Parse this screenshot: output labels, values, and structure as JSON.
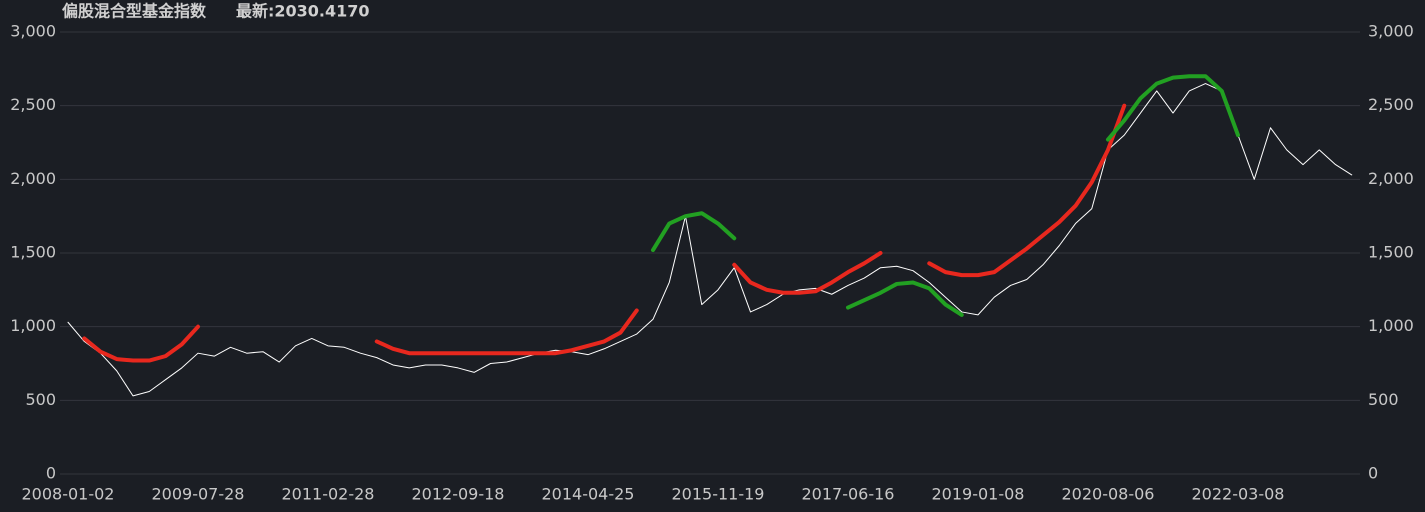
{
  "chart_data": {
    "type": "line",
    "title": "偏股混合型基金指数",
    "subtitle": "最新:2030.4170",
    "categories": [
      "2008-01-02",
      null,
      null,
      null,
      null,
      null,
      null,
      null,
      "2009-07-28",
      null,
      null,
      null,
      null,
      null,
      null,
      null,
      "2011-02-28",
      null,
      null,
      null,
      null,
      null,
      null,
      null,
      "2012-09-18",
      null,
      null,
      null,
      null,
      null,
      null,
      null,
      "2014-04-25",
      null,
      null,
      null,
      null,
      null,
      null,
      null,
      "2015-11-19",
      null,
      null,
      null,
      null,
      null,
      null,
      null,
      "2017-06-16",
      null,
      null,
      null,
      null,
      null,
      null,
      null,
      "2019-01-08",
      null,
      null,
      null,
      null,
      null,
      null,
      null,
      "2020-08-06",
      null,
      null,
      null,
      null,
      null,
      null,
      null,
      "2022-03-08",
      null,
      null,
      null,
      null,
      null,
      null,
      null
    ],
    "series": [
      {
        "color": "#ffffff",
        "width": 1,
        "values": [
          1030,
          900,
          820,
          700,
          530,
          560,
          640,
          720,
          820,
          800,
          860,
          820,
          830,
          760,
          870,
          920,
          870,
          860,
          820,
          790,
          740,
          720,
          740,
          740,
          720,
          690,
          750,
          760,
          790,
          820,
          840,
          830,
          810,
          850,
          900,
          950,
          1050,
          1300,
          1750,
          1150,
          1250,
          1400,
          1100,
          1150,
          1220,
          1250,
          1260,
          1220,
          1280,
          1330,
          1400,
          1410,
          1380,
          1300,
          1200,
          1100,
          1080,
          1200,
          1280,
          1320,
          1420,
          1550,
          1700,
          1800,
          2200,
          2300,
          2450,
          2600,
          2450,
          2600,
          2650,
          2600,
          2300,
          2000,
          2350,
          2200,
          2100,
          2200,
          2100,
          2030
        ]
      },
      {
        "color": "#e8281e",
        "width": 4,
        "values": [
          null,
          920,
          830,
          780,
          770,
          770,
          800,
          880,
          1000,
          null,
          null,
          null,
          null,
          null,
          null,
          null,
          null,
          null,
          null,
          900,
          850,
          820,
          820,
          820,
          820,
          820,
          820,
          820,
          820,
          820,
          820,
          840,
          870,
          900,
          960,
          1110,
          null,
          null,
          null,
          null,
          null,
          1420,
          1300,
          1250,
          1230,
          1230,
          1240,
          1300,
          1370,
          1430,
          1500,
          null,
          null,
          1430,
          1370,
          1350,
          1350,
          1370,
          1450,
          1530,
          1620,
          1710,
          1820,
          1980,
          2200,
          2500,
          null,
          null,
          null,
          null,
          null,
          null,
          null,
          null,
          null,
          null,
          null,
          null,
          null,
          null
        ]
      },
      {
        "color": "#22a022",
        "width": 4,
        "values": [
          null,
          null,
          null,
          null,
          null,
          null,
          null,
          null,
          null,
          null,
          null,
          null,
          null,
          null,
          null,
          null,
          null,
          null,
          null,
          null,
          null,
          null,
          null,
          null,
          null,
          null,
          null,
          null,
          null,
          null,
          null,
          null,
          null,
          null,
          null,
          null,
          1520,
          1700,
          1750,
          1770,
          1700,
          1600,
          null,
          null,
          null,
          null,
          null,
          null,
          1130,
          1180,
          1230,
          1290,
          1300,
          1260,
          1150,
          1080,
          null,
          null,
          null,
          null,
          null,
          null,
          null,
          null,
          2270,
          2400,
          2550,
          2650,
          2690,
          2700,
          2700,
          2600,
          2300,
          null,
          null,
          null,
          null,
          null,
          null,
          null
        ]
      }
    ],
    "ylim": [
      0,
      3000
    ],
    "yticks": [
      0,
      500,
      {
        "value": 1000,
        "label": "1,000"
      },
      {
        "value": 1500,
        "label": "1,500"
      },
      {
        "value": 2000,
        "label": "2,000"
      },
      {
        "value": 2500,
        "label": "2,500"
      },
      {
        "value": 3000,
        "label": "3,000"
      }
    ],
    "grid": true
  }
}
